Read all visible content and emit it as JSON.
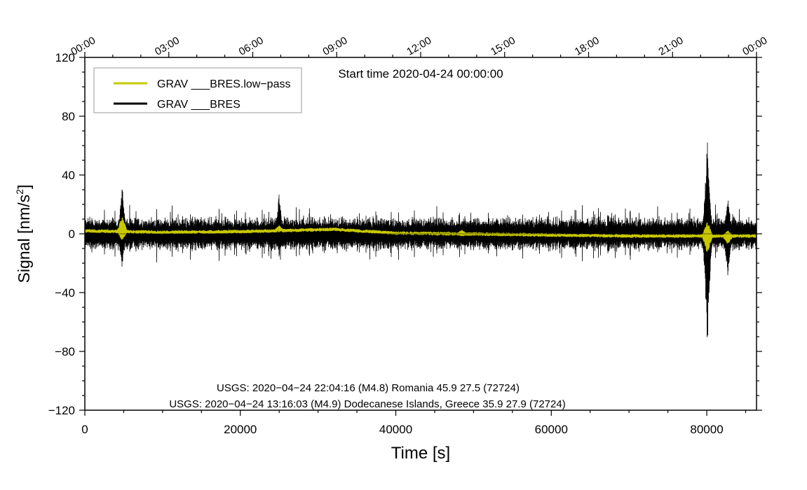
{
  "chart_data": {
    "type": "line",
    "title": "Start time 2020-04-24 00:00:00",
    "xlabel": "Time [s]",
    "ylabel_main": "Signal [nm/s",
    "ylabel_sup": "2",
    "ylabel_close": "]",
    "xlim": [
      0,
      86400
    ],
    "ylim": [
      -120,
      120
    ],
    "x_ticks": [
      {
        "value": 0,
        "label": "0"
      },
      {
        "value": 20000,
        "label": "20000"
      },
      {
        "value": 40000,
        "label": "40000"
      },
      {
        "value": 60000,
        "label": "60000"
      },
      {
        "value": 80000,
        "label": "80000"
      }
    ],
    "y_ticks": [
      {
        "value": 120,
        "label": "120"
      },
      {
        "value": 80,
        "label": "80"
      },
      {
        "value": 40,
        "label": "40"
      },
      {
        "value": 0,
        "label": "0"
      },
      {
        "value": -40,
        "label": "−40"
      },
      {
        "value": -80,
        "label": "−80"
      },
      {
        "value": -120,
        "label": "−120"
      }
    ],
    "top_ticks": [
      {
        "value": 0,
        "label": "00:00"
      },
      {
        "value": 10800,
        "label": "03:00"
      },
      {
        "value": 21600,
        "label": "06:00"
      },
      {
        "value": 32400,
        "label": "09:00"
      },
      {
        "value": 43200,
        "label": "12:00"
      },
      {
        "value": 54000,
        "label": "15:00"
      },
      {
        "value": 64800,
        "label": "18:00"
      },
      {
        "value": 75600,
        "label": "21:00"
      },
      {
        "value": 86400,
        "label": "00:00"
      }
    ],
    "legend": {
      "position": "top-left",
      "entries": [
        {
          "label": "GRAV ___BRES.low−pass",
          "color": "#c8c800"
        },
        {
          "label": "GRAV ___BRES",
          "color": "#000000"
        }
      ]
    },
    "annotations": [
      "USGS: 2020−04−24 22:04:16 (M4.8) Romania 45.9 27.5 (72724)",
      "USGS: 2020−04−24 13:16:03 (M4.9) Dodecanese Islands, Greece 35.9 27.9 (72724)"
    ],
    "series": [
      {
        "name": "GRAV ___BRES",
        "color": "#000000",
        "noise_amplitude": 12,
        "events": [
          {
            "x": 4800,
            "max": 34,
            "min": -26
          },
          {
            "x": 25000,
            "max": 28,
            "min": -16
          },
          {
            "x": 80080,
            "max": 70,
            "min": -79
          },
          {
            "x": 82700,
            "max": 26,
            "min": -30
          }
        ]
      },
      {
        "name": "GRAV ___BRES.low−pass",
        "color": "#c8c800",
        "baseline": [
          [
            0,
            2
          ],
          [
            10000,
            1
          ],
          [
            20000,
            1.5
          ],
          [
            32000,
            3
          ],
          [
            40000,
            0.5
          ],
          [
            55000,
            -0.5
          ],
          [
            70000,
            -1.5
          ],
          [
            86400,
            -1.5
          ]
        ],
        "events": [
          {
            "x": 4800,
            "max": 10,
            "min": -6
          },
          {
            "x": 25000,
            "max": 4,
            "min": 0
          },
          {
            "x": 48500,
            "max": 3,
            "min": -2
          },
          {
            "x": 80080,
            "max": 10,
            "min": -12
          },
          {
            "x": 82700,
            "max": 4,
            "min": -6
          }
        ]
      }
    ]
  }
}
